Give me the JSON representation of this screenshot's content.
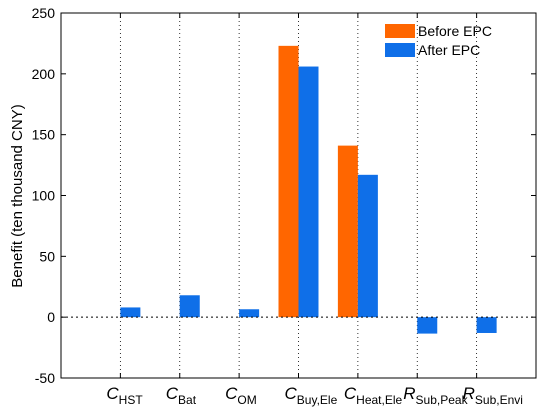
{
  "chart_data": {
    "type": "bar",
    "title": "",
    "xlabel": "",
    "ylabel": "Benefit (ten thousand CNY)",
    "ylim": [
      -50,
      250
    ],
    "yticks": [
      -50,
      0,
      50,
      100,
      150,
      200,
      250
    ],
    "grid": "dotted vertical at categories, none horizontal",
    "legend_position": "top-right",
    "categories": [
      {
        "main": "C",
        "sub": "HST"
      },
      {
        "main": "C",
        "sub": "Bat"
      },
      {
        "main": "C",
        "sub": "OM"
      },
      {
        "main": "C",
        "sub": "Buy,Ele"
      },
      {
        "main": "C",
        "sub": "Heat,Ele"
      },
      {
        "main": "R",
        "sub": "Sub,Peak"
      },
      {
        "main": "R",
        "sub": "Sub,Envi"
      }
    ],
    "series": [
      {
        "name": "Before EPC",
        "color": "#ff6600",
        "values": [
          0,
          0,
          0,
          223,
          141,
          0,
          0
        ]
      },
      {
        "name": "After EPC",
        "color": "#0f6fe8",
        "values": [
          8,
          18,
          6.5,
          206,
          117,
          -13.5,
          -13
        ]
      }
    ]
  }
}
